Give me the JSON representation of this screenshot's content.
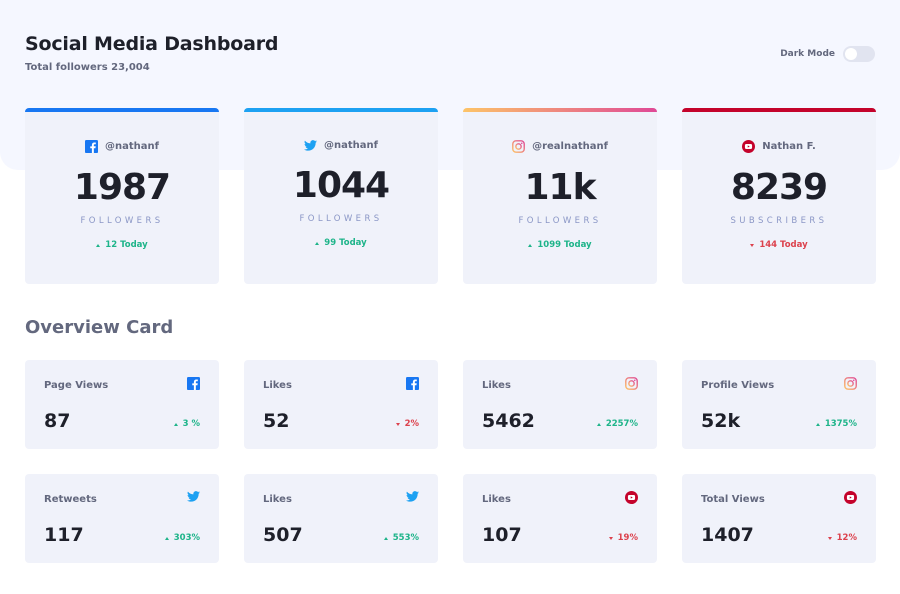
{
  "header": {
    "title": "Social Media Dashboard",
    "subtitle": "Total followers 23,004",
    "dark_mode_label": "Dark Mode",
    "dark_mode_on": false
  },
  "colors": {
    "facebook": "#1877f2",
    "twitter": "#1da1f2",
    "instagram_gradient": [
      "#fdc468",
      "#df4996"
    ],
    "youtube": "#c4032b",
    "up": "#1db489",
    "down": "#dc414c"
  },
  "followers": [
    {
      "platform": "facebook",
      "icon": "facebook-icon",
      "handle": "@nathanf",
      "count": "1987",
      "label": "FOLLOWERS",
      "change": "12 Today",
      "direction": "up"
    },
    {
      "platform": "twitter",
      "icon": "twitter-icon",
      "handle": "@nathanf",
      "count": "1044",
      "label": "FOLLOWERS",
      "change": "99 Today",
      "direction": "up"
    },
    {
      "platform": "instagram",
      "icon": "instagram-icon",
      "handle": "@realnathanf",
      "count": "11k",
      "label": "FOLLOWERS",
      "change": "1099 Today",
      "direction": "up"
    },
    {
      "platform": "youtube",
      "icon": "youtube-icon",
      "handle": "Nathan F.",
      "count": "8239",
      "label": "SUBSCRIBERS",
      "change": "144 Today",
      "direction": "down"
    }
  ],
  "overview": {
    "title": "Overview Card",
    "cards": [
      {
        "label": "Page Views",
        "platform": "facebook",
        "icon": "facebook-icon",
        "value": "87",
        "change": "3 %",
        "direction": "up"
      },
      {
        "label": "Likes",
        "platform": "facebook",
        "icon": "facebook-icon",
        "value": "52",
        "change": "2%",
        "direction": "down"
      },
      {
        "label": "Likes",
        "platform": "instagram",
        "icon": "instagram-icon",
        "value": "5462",
        "change": "2257%",
        "direction": "up"
      },
      {
        "label": "Profile Views",
        "platform": "instagram",
        "icon": "instagram-icon",
        "value": "52k",
        "change": "1375%",
        "direction": "up"
      },
      {
        "label": "Retweets",
        "platform": "twitter",
        "icon": "twitter-icon",
        "value": "117",
        "change": "303%",
        "direction": "up"
      },
      {
        "label": "Likes",
        "platform": "twitter",
        "icon": "twitter-icon",
        "value": "507",
        "change": "553%",
        "direction": "up"
      },
      {
        "label": "Likes",
        "platform": "youtube",
        "icon": "youtube-icon",
        "value": "107",
        "change": "19%",
        "direction": "down"
      },
      {
        "label": "Total Views",
        "platform": "youtube",
        "icon": "youtube-icon",
        "value": "1407",
        "change": "12%",
        "direction": "down"
      }
    ]
  }
}
